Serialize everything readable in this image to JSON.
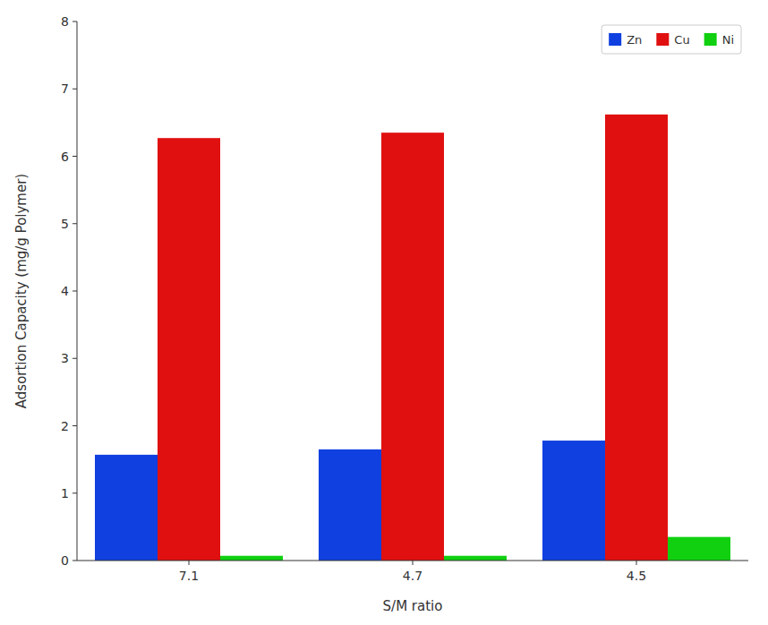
{
  "chart_data": {
    "type": "bar",
    "categories": [
      "7.1",
      "4.7",
      "4.5"
    ],
    "series": [
      {
        "name": "Zn",
        "color": "#1040e0",
        "values": [
          1.57,
          1.65,
          1.78
        ]
      },
      {
        "name": "Cu",
        "color": "#e01010",
        "values": [
          6.27,
          6.35,
          6.62
        ]
      },
      {
        "name": "Ni",
        "color": "#10d010",
        "values": [
          0.07,
          0.07,
          0.35
        ]
      }
    ],
    "xlabel": "S/M ratio",
    "ylabel": "Adsortion Capacity (mg/g Polymer)",
    "ylim": [
      0,
      8
    ],
    "yticks": [
      0,
      1,
      2,
      3,
      4,
      5,
      6,
      7,
      8
    ],
    "grid": false,
    "legend": "upper right"
  }
}
